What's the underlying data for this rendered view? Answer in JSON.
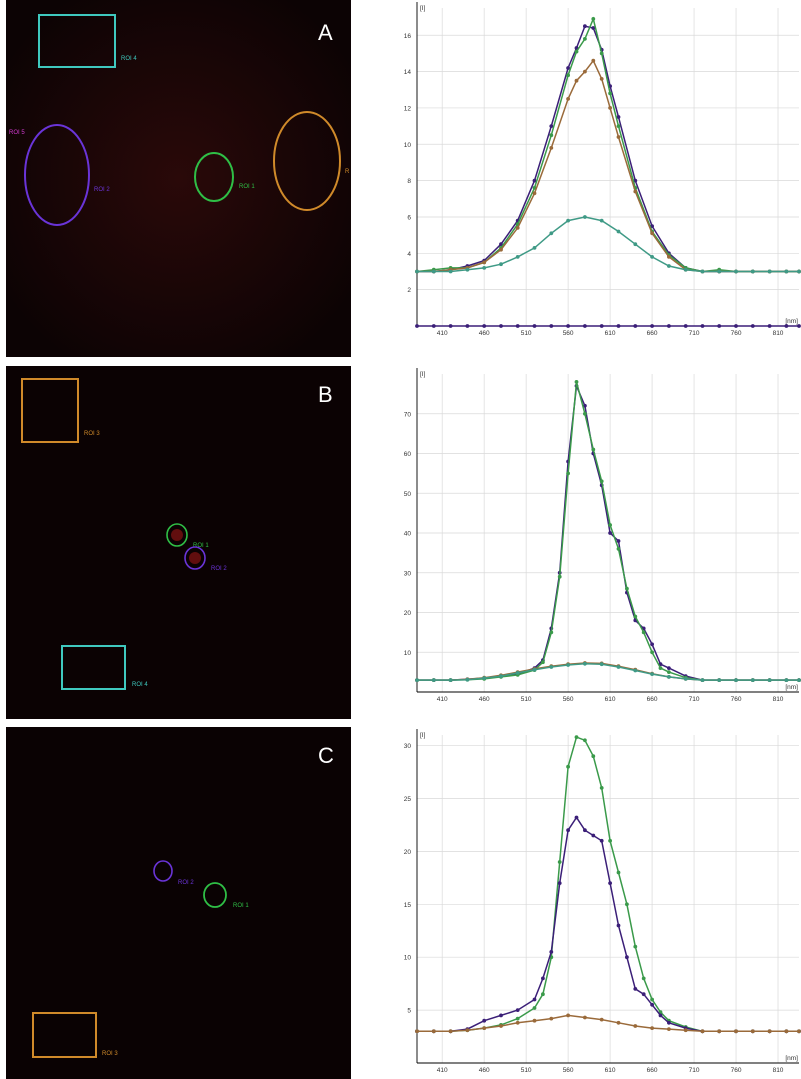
{
  "colors": {
    "background": "#0c0304",
    "green": "#2fbf46",
    "purple": "#6a34d8",
    "orange": "#d08a2a",
    "cyan": "#3fc9bf",
    "magenta": "#d23ad0",
    "line_navy": "#3b1f78",
    "line_green": "#3a9a4a",
    "line_brown": "#9a6a3a",
    "line_teal": "#3f9a86"
  },
  "panels": [
    {
      "letter": "A",
      "rois": [
        {
          "shape": "rect",
          "label": "ROI 4",
          "color": "#3fc9bf"
        },
        {
          "shape": "ellipse",
          "label": "ROI 5",
          "color": "#d23ad0"
        },
        {
          "shape": "ellipse",
          "label": "ROI 2",
          "color": "#6a34d8"
        },
        {
          "shape": "ellipse",
          "label": "ROI 1",
          "color": "#2fbf46"
        },
        {
          "shape": "ellipse",
          "label": "R",
          "color": "#d08a2a"
        }
      ]
    },
    {
      "letter": "B",
      "rois": [
        {
          "shape": "rect",
          "label": "ROI 3",
          "color": "#d08a2a"
        },
        {
          "shape": "ellipse",
          "label": "ROI 1",
          "color": "#2fbf46"
        },
        {
          "shape": "ellipse",
          "label": "ROI 2",
          "color": "#6a34d8"
        },
        {
          "shape": "rect",
          "label": "ROI 4",
          "color": "#3fc9bf"
        }
      ]
    },
    {
      "letter": "C",
      "rois": [
        {
          "shape": "ellipse",
          "label": "ROI 2",
          "color": "#6a34d8"
        },
        {
          "shape": "ellipse",
          "label": "ROI 1",
          "color": "#2fbf46"
        },
        {
          "shape": "rect",
          "label": "ROI 3",
          "color": "#d08a2a"
        }
      ]
    }
  ],
  "chart_data": [
    {
      "type": "line",
      "ylabel": "[I]",
      "xlabel": "[nm]",
      "xlim": [
        380,
        835
      ],
      "ylim": [
        0,
        17.5
      ],
      "x_ticks": [
        410,
        460,
        510,
        560,
        610,
        660,
        710,
        760,
        810
      ],
      "y_ticks": [
        2,
        4,
        6,
        8,
        10,
        12,
        14,
        16
      ],
      "grid": true,
      "legend": "none",
      "series": [
        {
          "color": "#3b1f78",
          "x": [
            380,
            400,
            420,
            440,
            460,
            480,
            500,
            520,
            540,
            560,
            570,
            580,
            590,
            600,
            610,
            620,
            640,
            660,
            680,
            700,
            720,
            740,
            760,
            780,
            800,
            820,
            835
          ],
          "y": [
            3.0,
            3.0,
            3.1,
            3.3,
            3.6,
            4.5,
            5.8,
            8.0,
            11.0,
            14.2,
            15.3,
            16.5,
            16.4,
            15.2,
            13.2,
            11.5,
            8.0,
            5.5,
            4.0,
            3.2,
            3.0,
            3.0,
            3.0,
            3.0,
            3.0,
            3.0,
            3.0
          ]
        },
        {
          "color": "#3a9a4a",
          "x": [
            380,
            400,
            420,
            440,
            460,
            480,
            500,
            520,
            540,
            560,
            570,
            580,
            590,
            600,
            610,
            620,
            640,
            660,
            680,
            700,
            720,
            740,
            760,
            780,
            800,
            820,
            835
          ],
          "y": [
            3.0,
            3.1,
            3.2,
            3.2,
            3.5,
            4.3,
            5.6,
            7.6,
            10.5,
            13.8,
            15.1,
            15.8,
            16.9,
            15.0,
            12.8,
            11.0,
            7.6,
            5.2,
            3.9,
            3.2,
            3.0,
            3.1,
            3.0,
            3.0,
            3.0,
            3.0,
            3.0
          ]
        },
        {
          "color": "#9a6a3a",
          "x": [
            380,
            400,
            420,
            440,
            460,
            480,
            500,
            520,
            540,
            560,
            570,
            580,
            590,
            600,
            610,
            620,
            640,
            660,
            680,
            700,
            720,
            740,
            760,
            780,
            800,
            820,
            835
          ],
          "y": [
            3.0,
            3.0,
            3.1,
            3.2,
            3.5,
            4.2,
            5.4,
            7.3,
            9.8,
            12.5,
            13.5,
            14.0,
            14.6,
            13.6,
            12.0,
            10.4,
            7.4,
            5.1,
            3.8,
            3.1,
            3.0,
            3.0,
            3.0,
            3.0,
            3.0,
            3.0,
            3.0
          ]
        },
        {
          "color": "#3f9a86",
          "x": [
            380,
            400,
            420,
            440,
            460,
            480,
            500,
            520,
            540,
            560,
            580,
            600,
            620,
            640,
            660,
            680,
            700,
            720,
            740,
            760,
            780,
            800,
            820,
            835
          ],
          "y": [
            3.0,
            3.0,
            3.0,
            3.1,
            3.2,
            3.4,
            3.8,
            4.3,
            5.1,
            5.8,
            6.0,
            5.8,
            5.2,
            4.5,
            3.8,
            3.3,
            3.1,
            3.0,
            3.0,
            3.0,
            3.0,
            3.0,
            3.0,
            3.0
          ]
        },
        {
          "color": "#3b1f78",
          "x": [
            380,
            400,
            420,
            440,
            460,
            480,
            500,
            520,
            540,
            560,
            580,
            600,
            620,
            640,
            660,
            680,
            700,
            720,
            740,
            760,
            780,
            800,
            820,
            835
          ],
          "y": [
            0,
            0,
            0,
            0,
            0,
            0,
            0,
            0,
            0,
            0,
            0,
            0,
            0,
            0,
            0,
            0,
            0,
            0,
            0,
            0,
            0,
            0,
            0,
            0
          ]
        }
      ]
    },
    {
      "type": "line",
      "ylabel": "[I]",
      "xlabel": "[nm]",
      "xlim": [
        380,
        835
      ],
      "ylim": [
        0,
        80
      ],
      "x_ticks": [
        410,
        460,
        510,
        560,
        610,
        660,
        710,
        760,
        810
      ],
      "y_ticks": [
        10,
        20,
        30,
        40,
        50,
        60,
        70
      ],
      "grid": true,
      "legend": "none",
      "series": [
        {
          "color": "#3b1f78",
          "x": [
            380,
            400,
            420,
            440,
            460,
            480,
            500,
            520,
            530,
            540,
            550,
            560,
            570,
            580,
            590,
            600,
            610,
            620,
            630,
            640,
            650,
            660,
            670,
            680,
            700,
            720,
            740,
            760,
            780,
            800,
            820,
            835
          ],
          "y": [
            3,
            3,
            3,
            3.2,
            3.5,
            4,
            4.5,
            6,
            8,
            16,
            30,
            58,
            77,
            72,
            60,
            52,
            40,
            38,
            25,
            18,
            16,
            12,
            7,
            6,
            4,
            3,
            3,
            3,
            3,
            3,
            3,
            3
          ]
        },
        {
          "color": "#3a9a4a",
          "x": [
            380,
            400,
            420,
            440,
            460,
            480,
            500,
            520,
            530,
            540,
            550,
            560,
            570,
            580,
            590,
            600,
            610,
            620,
            630,
            640,
            650,
            660,
            670,
            680,
            700,
            720,
            740,
            760,
            780,
            800,
            820,
            835
          ],
          "y": [
            3,
            3,
            3,
            3.1,
            3.3,
            3.8,
            4.3,
            5.5,
            7.5,
            15,
            29,
            55,
            78,
            70,
            61,
            53,
            42,
            36,
            26,
            19,
            15,
            10,
            6,
            5,
            3.6,
            3,
            3,
            3,
            3,
            3,
            3,
            3
          ]
        },
        {
          "color": "#9a6a3a",
          "x": [
            380,
            400,
            420,
            440,
            460,
            480,
            500,
            520,
            540,
            560,
            580,
            600,
            620,
            640,
            660,
            680,
            700,
            720,
            740,
            760,
            780,
            800,
            820,
            835
          ],
          "y": [
            3,
            3,
            3,
            3.2,
            3.6,
            4.2,
            5,
            5.8,
            6.5,
            7,
            7.3,
            7.2,
            6.5,
            5.6,
            4.6,
            3.8,
            3.3,
            3,
            3,
            3,
            3,
            3,
            3,
            3
          ]
        },
        {
          "color": "#3f9a86",
          "x": [
            380,
            400,
            420,
            440,
            460,
            480,
            500,
            520,
            540,
            560,
            580,
            600,
            620,
            640,
            660,
            680,
            700,
            720,
            740,
            760,
            780,
            800,
            820,
            835
          ],
          "y": [
            3,
            3,
            3,
            3.1,
            3.5,
            4,
            4.8,
            5.6,
            6.3,
            6.8,
            7.1,
            7,
            6.3,
            5.4,
            4.5,
            3.8,
            3.3,
            3,
            3,
            3,
            3,
            3,
            3,
            3
          ]
        }
      ]
    },
    {
      "type": "line",
      "ylabel": "[I]",
      "xlabel": "[nm]",
      "xlim": [
        380,
        835
      ],
      "ylim": [
        0,
        31
      ],
      "x_ticks": [
        410,
        460,
        510,
        560,
        610,
        660,
        710,
        760,
        810
      ],
      "y_ticks": [
        5,
        10,
        15,
        20,
        25,
        30
      ],
      "grid": true,
      "legend": "none",
      "series": [
        {
          "color": "#3a9a4a",
          "x": [
            380,
            400,
            420,
            440,
            460,
            480,
            500,
            520,
            530,
            540,
            550,
            560,
            570,
            580,
            590,
            600,
            610,
            620,
            630,
            640,
            650,
            660,
            670,
            680,
            700,
            720,
            740,
            760,
            780,
            800,
            820,
            835
          ],
          "y": [
            3,
            3,
            3,
            3.1,
            3.3,
            3.6,
            4.2,
            5.2,
            6.5,
            10,
            19,
            28,
            30.8,
            30.5,
            29,
            26,
            21,
            18,
            15,
            11,
            8,
            6,
            4.8,
            4,
            3.4,
            3,
            3,
            3,
            3,
            3,
            3,
            3
          ]
        },
        {
          "color": "#3b1f78",
          "x": [
            380,
            400,
            420,
            440,
            460,
            480,
            500,
            520,
            530,
            540,
            550,
            560,
            570,
            580,
            590,
            600,
            610,
            620,
            630,
            640,
            650,
            660,
            670,
            680,
            700,
            720,
            740,
            760,
            780,
            800,
            820,
            835
          ],
          "y": [
            3,
            3,
            3,
            3.2,
            4,
            4.5,
            5,
            6,
            8,
            10.5,
            17,
            22,
            23.2,
            22,
            21.5,
            21,
            17,
            13,
            10,
            7,
            6.5,
            5.5,
            4.5,
            3.8,
            3.3,
            3,
            3,
            3,
            3,
            3,
            3,
            3
          ]
        },
        {
          "color": "#9a6a3a",
          "x": [
            380,
            400,
            420,
            440,
            460,
            480,
            500,
            520,
            540,
            560,
            580,
            600,
            620,
            640,
            660,
            680,
            700,
            720,
            740,
            760,
            780,
            800,
            820,
            835
          ],
          "y": [
            3,
            3,
            3,
            3.1,
            3.3,
            3.5,
            3.8,
            4,
            4.2,
            4.5,
            4.3,
            4.1,
            3.8,
            3.5,
            3.3,
            3.2,
            3.1,
            3,
            3,
            3,
            3,
            3,
            3,
            3
          ]
        }
      ]
    }
  ]
}
